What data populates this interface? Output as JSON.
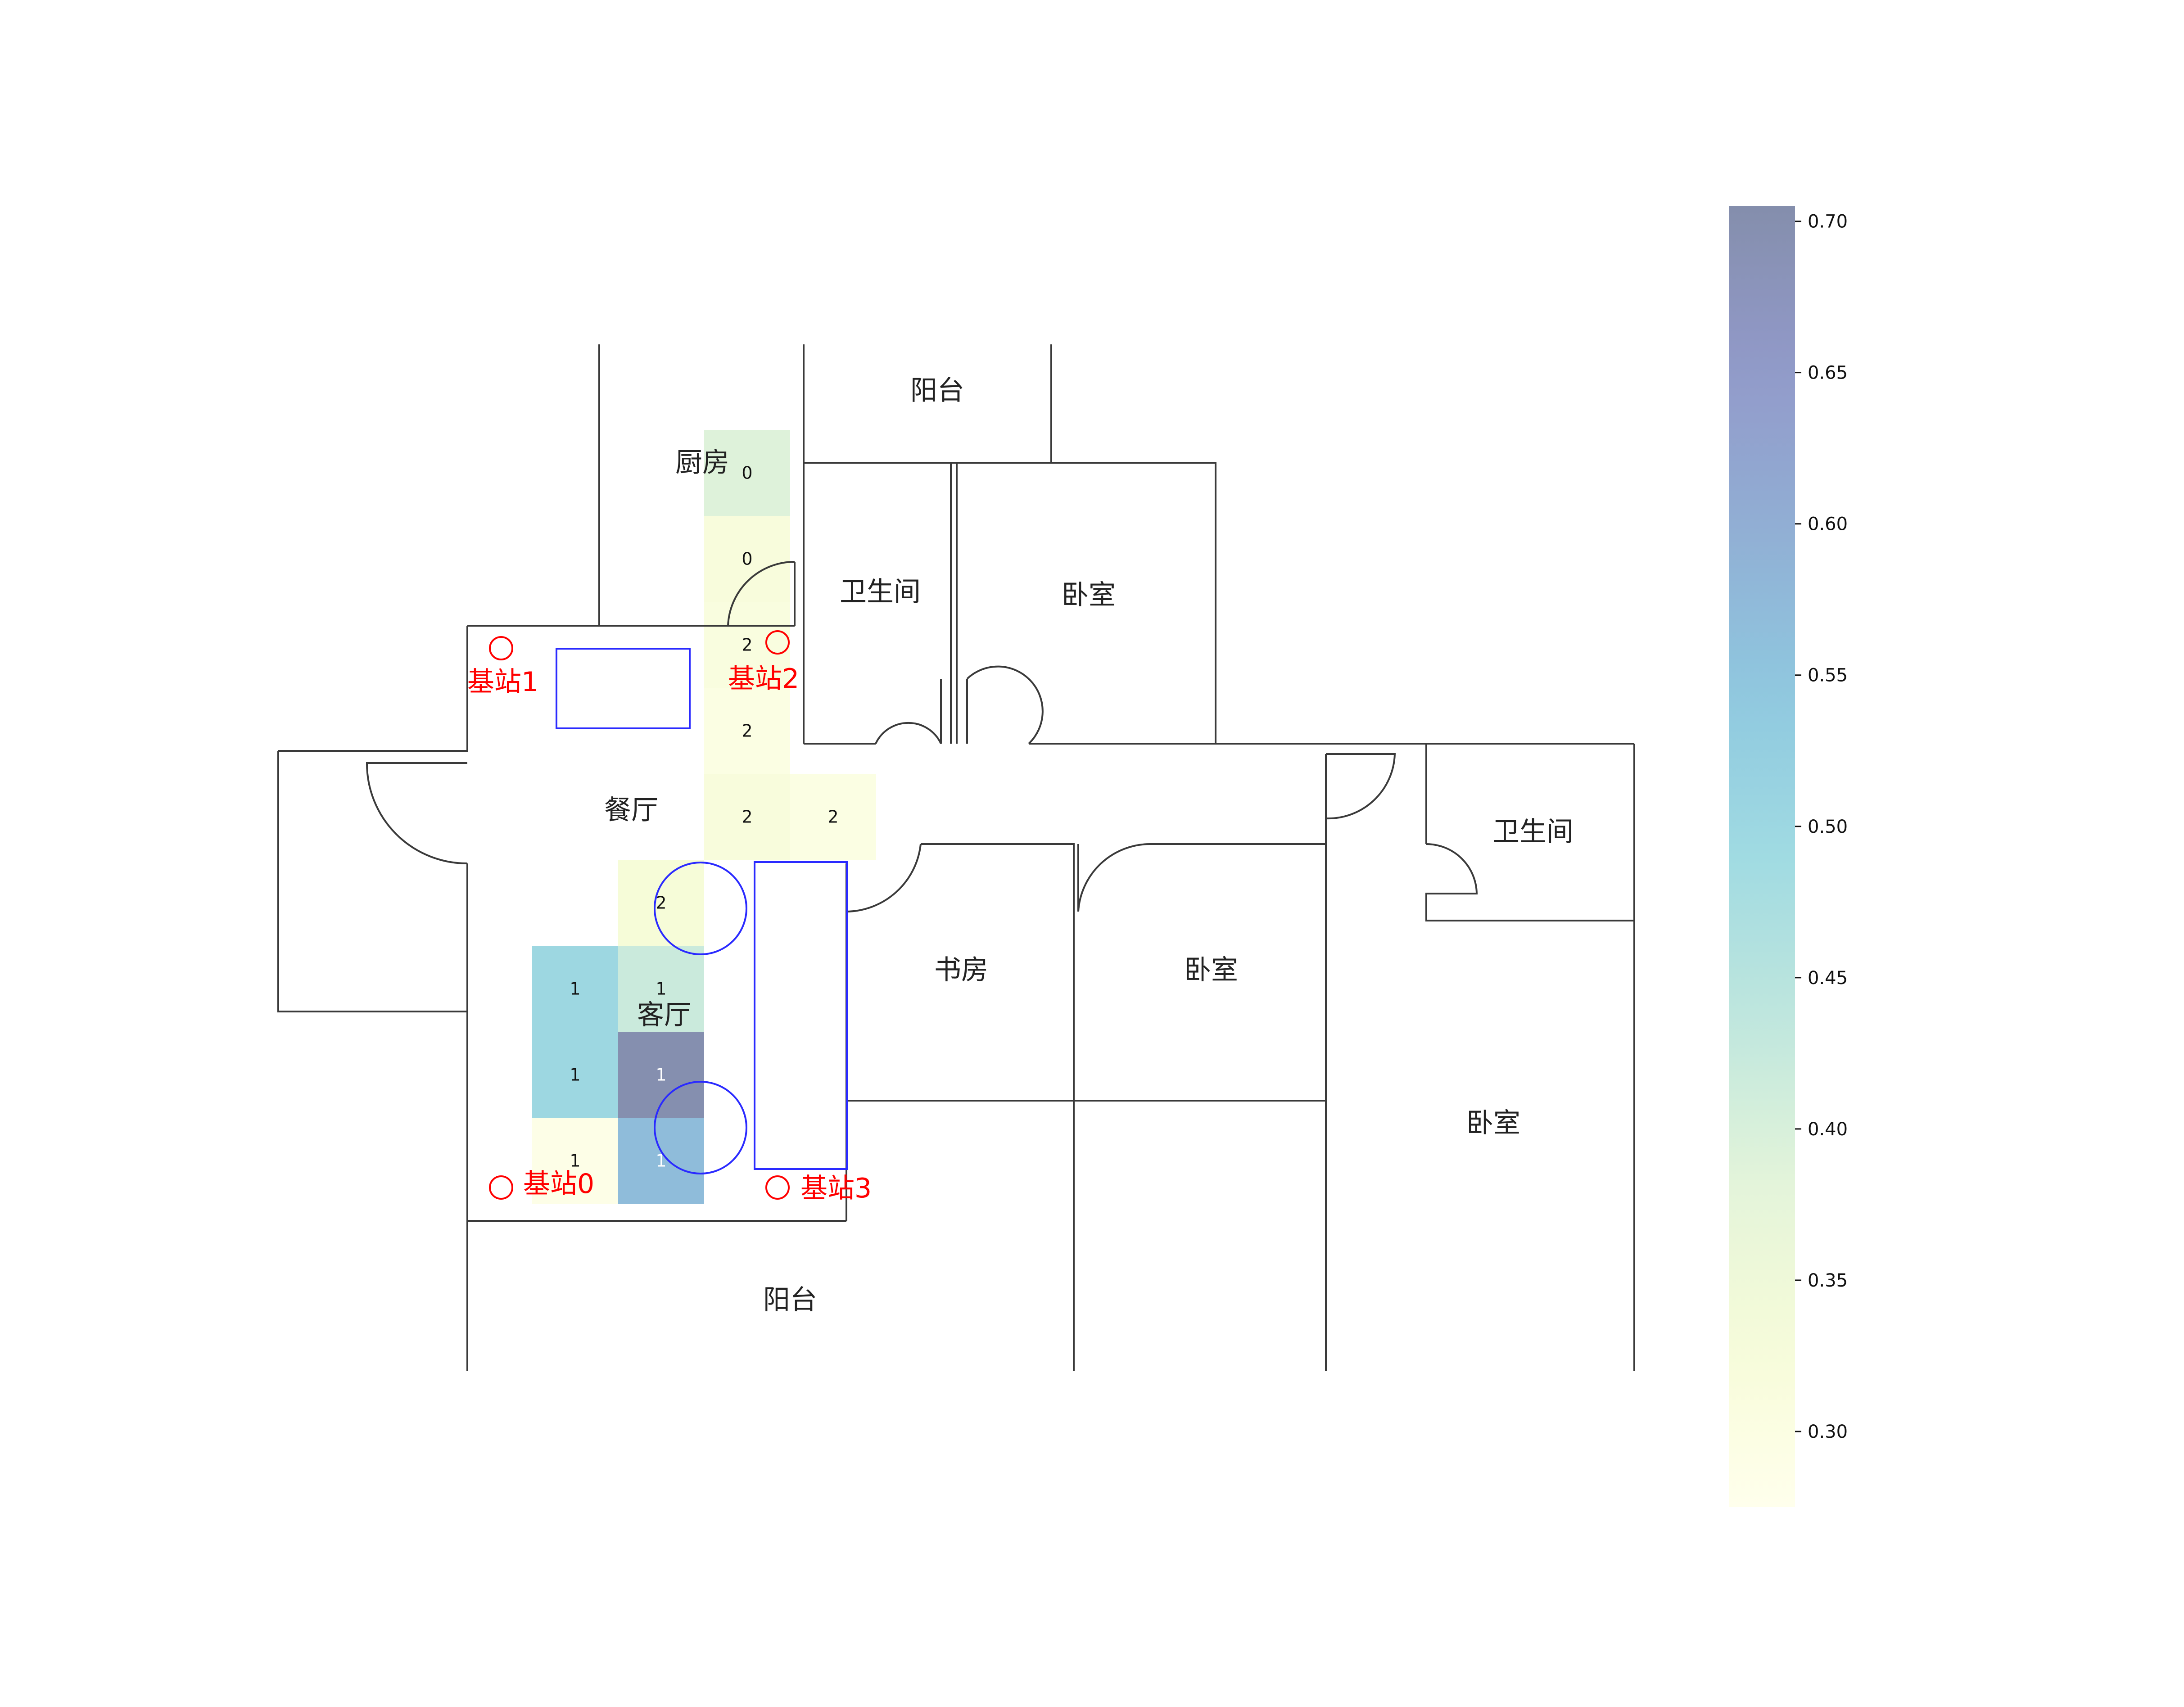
{
  "rooms": [
    {
      "id": "balcony-top",
      "label": "阳台"
    },
    {
      "id": "kitchen",
      "label": "厨房"
    },
    {
      "id": "bathroom-1",
      "label": "卫生间"
    },
    {
      "id": "bedroom-1",
      "label": "卧室"
    },
    {
      "id": "dining",
      "label": "餐厅"
    },
    {
      "id": "bathroom-2",
      "label": "卫生间"
    },
    {
      "id": "study",
      "label": "书房"
    },
    {
      "id": "bedroom-2",
      "label": "卧室"
    },
    {
      "id": "living",
      "label": "客厅"
    },
    {
      "id": "bedroom-3",
      "label": "卧室"
    },
    {
      "id": "balcony-bottom",
      "label": "阳台"
    }
  ],
  "stations": [
    {
      "id": "station-0",
      "label": "基站0"
    },
    {
      "id": "station-1",
      "label": "基站1"
    },
    {
      "id": "station-2",
      "label": "基站2"
    },
    {
      "id": "station-3",
      "label": "基站3"
    }
  ],
  "chart_data": {
    "type": "heatmap",
    "colormap": "YlGnBu",
    "cell_alpha": 0.5,
    "colorbar": {
      "min": 0.275,
      "max": 0.705,
      "ticks": [
        0.3,
        0.35,
        0.4,
        0.45,
        0.5,
        0.55,
        0.6,
        0.65,
        0.7
      ],
      "tick_labels": [
        "0.30",
        "0.35",
        "0.40",
        "0.45",
        "0.50",
        "0.55",
        "0.60",
        "0.65",
        "0.70"
      ]
    },
    "cells": [
      {
        "col": 2,
        "row": 0,
        "value": 0.39,
        "label": "0"
      },
      {
        "col": 2,
        "row": 1,
        "value": 0.32,
        "label": "0"
      },
      {
        "col": 2,
        "row": 2,
        "value": 0.31,
        "label": "2"
      },
      {
        "col": 2,
        "row": 3,
        "value": 0.3,
        "label": "2"
      },
      {
        "col": 2,
        "row": 4,
        "value": 0.32,
        "label": "2"
      },
      {
        "col": 3,
        "row": 4,
        "value": 0.3,
        "label": "2"
      },
      {
        "col": 1,
        "row": 5,
        "value": 0.33,
        "label": "2"
      },
      {
        "col": 0,
        "row": 6,
        "value": 0.5,
        "label": "1"
      },
      {
        "col": 1,
        "row": 6,
        "value": 0.42,
        "label": "1"
      },
      {
        "col": 0,
        "row": 7,
        "value": 0.5,
        "label": "1"
      },
      {
        "col": 1,
        "row": 7,
        "value": 0.7,
        "label": "1"
      },
      {
        "col": 0,
        "row": 8,
        "value": 0.29,
        "label": "1"
      },
      {
        "col": 1,
        "row": 8,
        "value": 0.57,
        "label": "1"
      }
    ]
  }
}
